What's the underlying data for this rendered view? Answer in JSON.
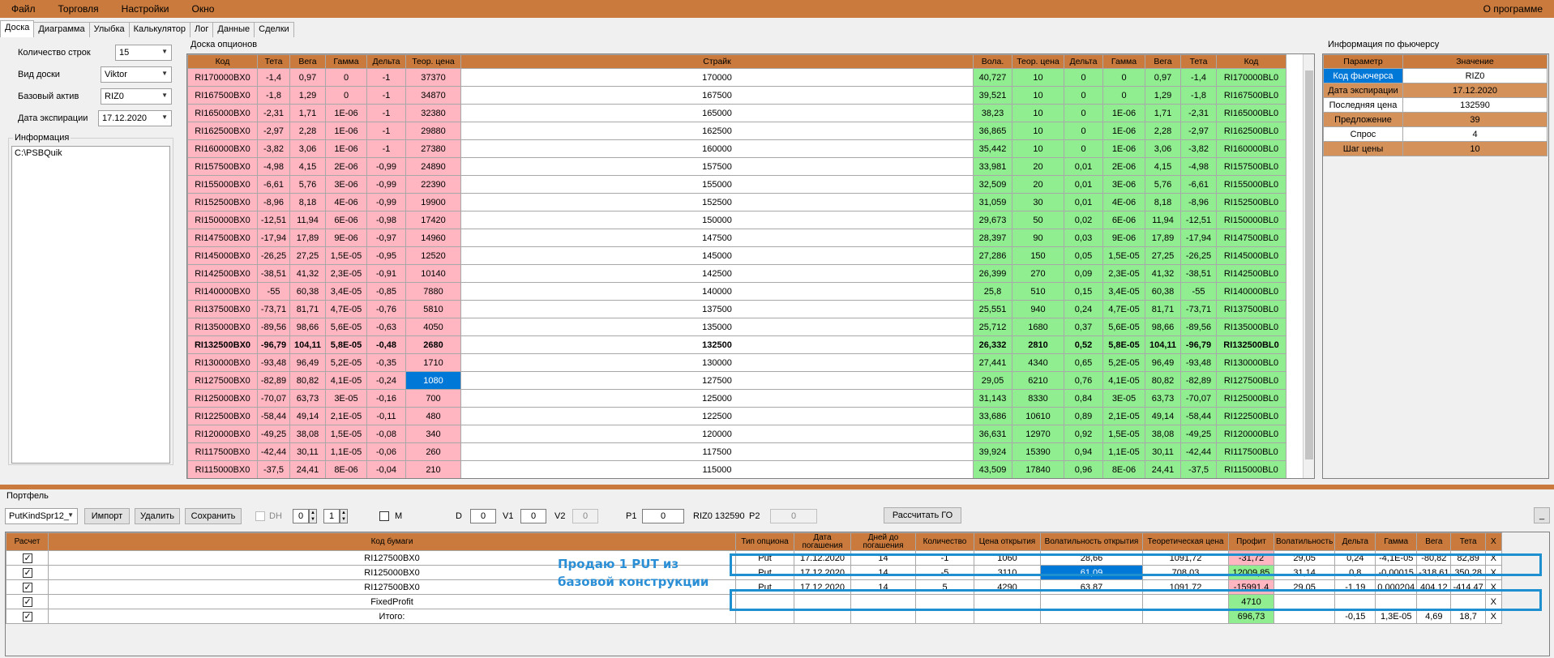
{
  "menu": {
    "file": "Файл",
    "trade": "Торговля",
    "settings": "Настройки",
    "window": "Окно",
    "about": "О программе"
  },
  "tabs": [
    "Доска",
    "Диаграмма",
    "Улыбка",
    "Калькулятор",
    "Лог",
    "Данные",
    "Сделки"
  ],
  "left": {
    "rows_label": "Количество строк",
    "rows_value": "15",
    "view_label": "Вид доски",
    "view_value": "Viktor",
    "asset_label": "Базовый актив",
    "asset_value": "RIZ0",
    "exp_label": "Дата экспирации",
    "exp_value": "17.12.2020",
    "info_label": "Информация",
    "info_text": "C:\\PSBQuik"
  },
  "board": {
    "title": "Доска опционов",
    "headers": [
      "Код",
      "Тета",
      "Вега",
      "Гамма",
      "Дельта",
      "Теор. цена",
      "Страйк",
      "Вола.",
      "Теор. цена",
      "Дельта",
      "Гамма",
      "Вега",
      "Тета",
      "Код"
    ],
    "rows": [
      [
        "RI170000BX0",
        "-1,4",
        "0,97",
        "0",
        "-1",
        "37370",
        "170000",
        "40,727",
        "10",
        "0",
        "0",
        "0,97",
        "-1,4",
        "RI170000BL0"
      ],
      [
        "RI167500BX0",
        "-1,8",
        "1,29",
        "0",
        "-1",
        "34870",
        "167500",
        "39,521",
        "10",
        "0",
        "0",
        "1,29",
        "-1,8",
        "RI167500BL0"
      ],
      [
        "RI165000BX0",
        "-2,31",
        "1,71",
        "1E-06",
        "-1",
        "32380",
        "165000",
        "38,23",
        "10",
        "0",
        "1E-06",
        "1,71",
        "-2,31",
        "RI165000BL0"
      ],
      [
        "RI162500BX0",
        "-2,97",
        "2,28",
        "1E-06",
        "-1",
        "29880",
        "162500",
        "36,865",
        "10",
        "0",
        "1E-06",
        "2,28",
        "-2,97",
        "RI162500BL0"
      ],
      [
        "RI160000BX0",
        "-3,82",
        "3,06",
        "1E-06",
        "-1",
        "27380",
        "160000",
        "35,442",
        "10",
        "0",
        "1E-06",
        "3,06",
        "-3,82",
        "RI160000BL0"
      ],
      [
        "RI157500BX0",
        "-4,98",
        "4,15",
        "2E-06",
        "-0,99",
        "24890",
        "157500",
        "33,981",
        "20",
        "0,01",
        "2E-06",
        "4,15",
        "-4,98",
        "RI157500BL0"
      ],
      [
        "RI155000BX0",
        "-6,61",
        "5,76",
        "3E-06",
        "-0,99",
        "22390",
        "155000",
        "32,509",
        "20",
        "0,01",
        "3E-06",
        "5,76",
        "-6,61",
        "RI155000BL0"
      ],
      [
        "RI152500BX0",
        "-8,96",
        "8,18",
        "4E-06",
        "-0,99",
        "19900",
        "152500",
        "31,059",
        "30",
        "0,01",
        "4E-06",
        "8,18",
        "-8,96",
        "RI152500BL0"
      ],
      [
        "RI150000BX0",
        "-12,51",
        "11,94",
        "6E-06",
        "-0,98",
        "17420",
        "150000",
        "29,673",
        "50",
        "0,02",
        "6E-06",
        "11,94",
        "-12,51",
        "RI150000BL0"
      ],
      [
        "RI147500BX0",
        "-17,94",
        "17,89",
        "9E-06",
        "-0,97",
        "14960",
        "147500",
        "28,397",
        "90",
        "0,03",
        "9E-06",
        "17,89",
        "-17,94",
        "RI147500BL0"
      ],
      [
        "RI145000BX0",
        "-26,25",
        "27,25",
        "1,5E-05",
        "-0,95",
        "12520",
        "145000",
        "27,286",
        "150",
        "0,05",
        "1,5E-05",
        "27,25",
        "-26,25",
        "RI145000BL0"
      ],
      [
        "RI142500BX0",
        "-38,51",
        "41,32",
        "2,3E-05",
        "-0,91",
        "10140",
        "142500",
        "26,399",
        "270",
        "0,09",
        "2,3E-05",
        "41,32",
        "-38,51",
        "RI142500BL0"
      ],
      [
        "RI140000BX0",
        "-55",
        "60,38",
        "3,4E-05",
        "-0,85",
        "7880",
        "140000",
        "25,8",
        "510",
        "0,15",
        "3,4E-05",
        "60,38",
        "-55",
        "RI140000BL0"
      ],
      [
        "RI137500BX0",
        "-73,71",
        "81,71",
        "4,7E-05",
        "-0,76",
        "5810",
        "137500",
        "25,551",
        "940",
        "0,24",
        "4,7E-05",
        "81,71",
        "-73,71",
        "RI137500BL0"
      ],
      [
        "RI135000BX0",
        "-89,56",
        "98,66",
        "5,6E-05",
        "-0,63",
        "4050",
        "135000",
        "25,712",
        "1680",
        "0,37",
        "5,6E-05",
        "98,66",
        "-89,56",
        "RI135000BL0"
      ],
      [
        "RI132500BX0",
        "-96,79",
        "104,11",
        "5,8E-05",
        "-0,48",
        "2680",
        "132500",
        "26,332",
        "2810",
        "0,52",
        "5,8E-05",
        "104,11",
        "-96,79",
        "RI132500BL0"
      ],
      [
        "RI130000BX0",
        "-93,48",
        "96,49",
        "5,2E-05",
        "-0,35",
        "1710",
        "130000",
        "27,441",
        "4340",
        "0,65",
        "5,2E-05",
        "96,49",
        "-93,48",
        "RI130000BL0"
      ],
      [
        "RI127500BX0",
        "-82,89",
        "80,82",
        "4,1E-05",
        "-0,24",
        "1080",
        "127500",
        "29,05",
        "6210",
        "0,76",
        "4,1E-05",
        "80,82",
        "-82,89",
        "RI127500BL0"
      ],
      [
        "RI125000BX0",
        "-70,07",
        "63,73",
        "3E-05",
        "-0,16",
        "700",
        "125000",
        "31,143",
        "8330",
        "0,84",
        "3E-05",
        "63,73",
        "-70,07",
        "RI125000BL0"
      ],
      [
        "RI122500BX0",
        "-58,44",
        "49,14",
        "2,1E-05",
        "-0,11",
        "480",
        "122500",
        "33,686",
        "10610",
        "0,89",
        "2,1E-05",
        "49,14",
        "-58,44",
        "RI122500BL0"
      ],
      [
        "RI120000BX0",
        "-49,25",
        "38,08",
        "1,5E-05",
        "-0,08",
        "340",
        "120000",
        "36,631",
        "12970",
        "0,92",
        "1,5E-05",
        "38,08",
        "-49,25",
        "RI120000BL0"
      ],
      [
        "RI117500BX0",
        "-42,44",
        "30,11",
        "1,1E-05",
        "-0,06",
        "260",
        "117500",
        "39,924",
        "15390",
        "0,94",
        "1,1E-05",
        "30,11",
        "-42,44",
        "RI117500BL0"
      ],
      [
        "RI115000BX0",
        "-37,5",
        "24,41",
        "8E-06",
        "-0,04",
        "210",
        "115000",
        "43,509",
        "17840",
        "0,96",
        "8E-06",
        "24,41",
        "-37,5",
        "RI115000BL0"
      ]
    ]
  },
  "futures": {
    "title": "Информация по фьючерсу",
    "headers": [
      "Параметр",
      "Значение"
    ],
    "rows": [
      [
        "Код фьючерса",
        "RIZ0"
      ],
      [
        "Дата экспирации",
        "17.12.2020"
      ],
      [
        "Последняя цена",
        "132590"
      ],
      [
        "Предложение",
        "39"
      ],
      [
        "Спрос",
        "4"
      ],
      [
        "Шаг цены",
        "10"
      ]
    ]
  },
  "portfolio": {
    "title": "Портфель",
    "select_value": "PutKindSpr12_",
    "import": "Импорт",
    "delete": "Удалить",
    "save": "Сохранить",
    "dh": "DH",
    "spin1": "0",
    "spin2": "1",
    "m": "M",
    "d_label": "D",
    "d_value": "0",
    "v1_label": "V1",
    "v1_value": "0",
    "v2_label": "V2",
    "v2_value": "0",
    "p1_label": "P1",
    "p1_value": "0",
    "riz_info": "RIZ0 132590",
    "p2_label": "P2",
    "p2_value": "0",
    "calc_go": "Рассчитать ГО",
    "minimize": "_",
    "headers": [
      "Расчет",
      "Код бумаги",
      "Тип опциона",
      "Дата погашения",
      "Дней до погашения",
      "Количество",
      "Цена открытия",
      "Волатильность открытия",
      "Теоретическая цена",
      "Профит",
      "Волатильность",
      "Дельта",
      "Гамма",
      "Вега",
      "Тета",
      "X"
    ],
    "rows": [
      [
        "RI127500BX0",
        "Put",
        "17.12.2020",
        "14",
        "-1",
        "1060",
        "28,66",
        "1091,72",
        "-31,72",
        "29,05",
        "0,24",
        "-4,1E-05",
        "-80,82",
        "82,89",
        "X"
      ],
      [
        "RI125000BX0",
        "Put",
        "17.12.2020",
        "14",
        "-5",
        "3110",
        "61,09",
        "708,03",
        "12009,85",
        "31,14",
        "0,8",
        "-0,00015",
        "-318,61",
        "350,28",
        "X"
      ],
      [
        "RI127500BX0",
        "Put",
        "17.12.2020",
        "14",
        "5",
        "4290",
        "63,87",
        "1091,72",
        "-15991,4",
        "29,05",
        "-1,19",
        "0,000204",
        "404,12",
        "-414,47",
        "X"
      ],
      [
        "FixedProfit",
        "",
        "",
        "",
        "",
        "",
        "",
        "",
        "4710",
        "",
        "",
        "",
        "",
        "",
        "X"
      ],
      [
        "Итого:",
        "",
        "",
        "",
        "",
        "",
        "",
        "",
        "696,73",
        "",
        "-0,15",
        "1,3E-05",
        "4,69",
        "18,7",
        "X"
      ]
    ],
    "annotation_line1": "Продаю 1 PUT из",
    "annotation_line2": "базовой конструкции"
  }
}
